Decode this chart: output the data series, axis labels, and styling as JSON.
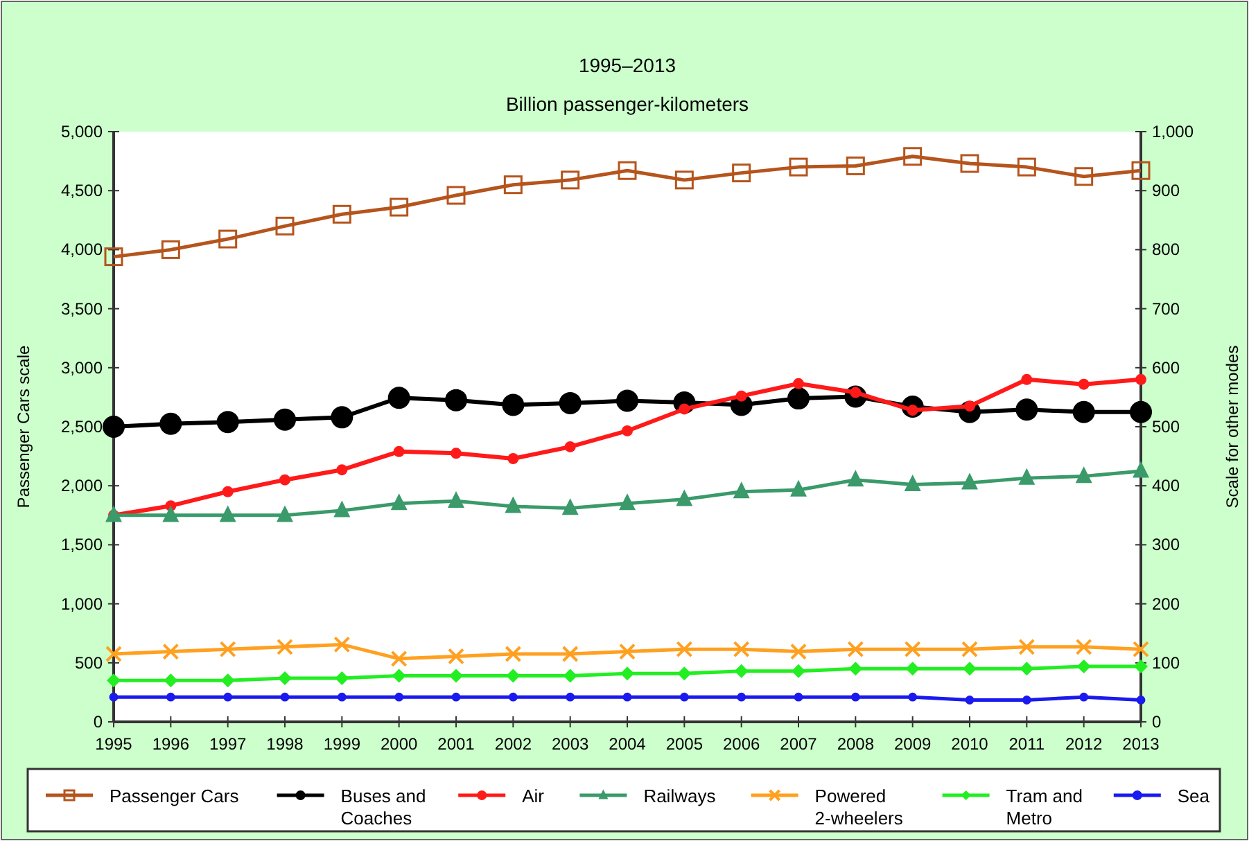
{
  "chart_data": {
    "type": "line",
    "title": "1995–2013",
    "subtitle": "Billion passenger-kilometers",
    "ylabel": "Passenger Cars scale",
    "y2label": "Scale for other modes",
    "x": [
      1995,
      1996,
      1997,
      1998,
      1999,
      2000,
      2001,
      2002,
      2003,
      2004,
      2005,
      2006,
      2007,
      2008,
      2009,
      2010,
      2011,
      2012,
      2013
    ],
    "xlim": [
      1995,
      2013
    ],
    "xticks": [
      1995,
      1996,
      1997,
      1998,
      1999,
      2000,
      2001,
      2002,
      2003,
      2004,
      2005,
      2006,
      2007,
      2008,
      2009,
      2010,
      2011,
      2012,
      2013
    ],
    "ylim": [
      0,
      5000
    ],
    "yticks": [
      {
        "value": 0,
        "label": "0"
      },
      {
        "value": 500,
        "label": "500"
      },
      {
        "value": 1000,
        "label": "1,000"
      },
      {
        "value": 1500,
        "label": "1,500"
      },
      {
        "value": 2000,
        "label": "2,000"
      },
      {
        "value": 2500,
        "label": "2,500"
      },
      {
        "value": 3000,
        "label": "3,000"
      },
      {
        "value": 3500,
        "label": "3,500"
      },
      {
        "value": 4000,
        "label": "4,000"
      },
      {
        "value": 4500,
        "label": "4,500"
      },
      {
        "value": 5000,
        "label": "5,000"
      }
    ],
    "y2lim": [
      0,
      1000
    ],
    "y2ticks": [
      0,
      100,
      200,
      300,
      400,
      500,
      600,
      700,
      800,
      900,
      {
        "value": 1000,
        "label": "1,000"
      }
    ],
    "legend": "bottom",
    "grid": false,
    "series": [
      {
        "name": "Passenger Cars",
        "color": "#b5541c",
        "marker": "square",
        "values": [
          3940,
          4000,
          4090,
          4200,
          4300,
          4360,
          4460,
          4550,
          4590,
          4670,
          4590,
          4650,
          4700,
          4710,
          4790,
          4730,
          4700,
          4620,
          4670
        ]
      },
      {
        "name": "Buses and Coaches",
        "color": "#000000",
        "marker": "circle",
        "axis": "y2",
        "values": [
          500,
          505,
          508,
          512,
          516,
          549,
          545,
          537,
          540,
          544,
          541,
          537,
          548,
          551,
          534,
          525,
          529,
          525,
          525
        ]
      },
      {
        "name": "Air",
        "color": "#ff1a1a",
        "marker": "circle",
        "axis": "y2",
        "values": [
          350,
          366,
          390,
          410,
          427,
          458,
          455,
          446,
          466,
          493,
          530,
          552,
          573,
          558,
          528,
          535,
          580,
          572,
          580
        ]
      },
      {
        "name": "Railways",
        "color": "#3a9a6a",
        "marker": "triangle",
        "axis": "y2",
        "values": [
          350,
          350,
          350,
          350,
          358,
          370,
          374,
          365,
          362,
          370,
          377,
          390,
          393,
          410,
          402,
          405,
          413,
          416,
          425
        ]
      },
      {
        "name": "Powered 2-wheelers",
        "color": "#ffa020",
        "marker": "cross",
        "axis": "y2",
        "values": [
          115,
          119,
          123,
          127,
          131,
          107,
          111,
          115,
          115,
          119,
          123,
          123,
          119,
          123,
          123,
          123,
          127,
          127,
          123
        ]
      },
      {
        "name": "Tram and Metro",
        "color": "#22ee22",
        "marker": "diamond",
        "axis": "y2",
        "values": [
          70,
          70,
          70,
          74,
          74,
          78,
          78,
          78,
          78,
          82,
          82,
          86,
          86,
          90,
          90,
          90,
          90,
          94,
          94
        ]
      },
      {
        "name": "Sea",
        "color": "#1a1aee",
        "marker": "circle",
        "axis": "y2",
        "values": [
          42,
          42,
          42,
          42,
          42,
          42,
          42,
          42,
          42,
          42,
          42,
          42,
          42,
          42,
          42,
          37,
          37,
          42,
          37
        ]
      }
    ]
  }
}
